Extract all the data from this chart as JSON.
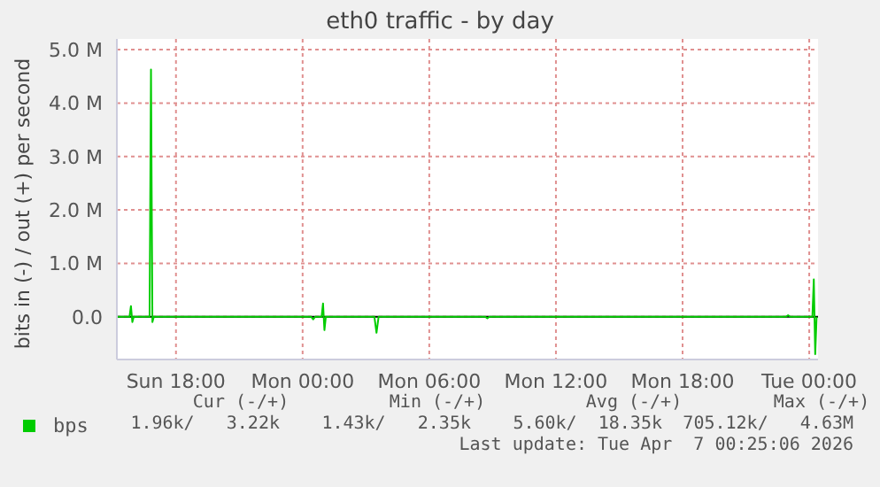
{
  "chart_data": {
    "type": "line",
    "title": "eth0 traffic - by day",
    "ylabel": "bits in (-) / out (+) per second",
    "xlim": [
      "2026-04-05T15:12",
      "2026-04-07T00:25"
    ],
    "xticks": [
      {
        "value": "2026-04-05T18:00",
        "label": "Sun 18:00"
      },
      {
        "value": "2026-04-06T00:00",
        "label": "Mon 00:00"
      },
      {
        "value": "2026-04-06T06:00",
        "label": "Mon 06:00"
      },
      {
        "value": "2026-04-06T12:00",
        "label": "Mon 12:00"
      },
      {
        "value": "2026-04-06T18:00",
        "label": "Mon 18:00"
      },
      {
        "value": "2026-04-07T00:00",
        "label": "Tue 00:00"
      }
    ],
    "ylim": [
      -0.8,
      5.2
    ],
    "yticks": [
      {
        "value": 0,
        "label": "0.0"
      },
      {
        "value": 1,
        "label": "1.0 M"
      },
      {
        "value": 2,
        "label": "2.0 M"
      },
      {
        "value": 3,
        "label": "3.0 M"
      },
      {
        "value": 4,
        "label": "4.0 M"
      },
      {
        "value": 5,
        "label": "5.0 M"
      }
    ],
    "grid": true,
    "legend": "bottom",
    "marker": "none",
    "line_style": "solid",
    "series": [
      {
        "name": "bps",
        "color": "#00cc00",
        "x": [
          "2026-04-05T15:12",
          "2026-04-05T15:48",
          "2026-04-05T15:52",
          "2026-04-05T15:56",
          "2026-04-05T16:00",
          "2026-04-05T16:45",
          "2026-04-05T16:49",
          "2026-04-05T16:53",
          "2026-04-05T16:57",
          "2026-04-06T00:24",
          "2026-04-06T00:30",
          "2026-04-06T00:36",
          "2026-04-06T00:54",
          "2026-04-06T00:58",
          "2026-04-06T01:02",
          "2026-04-06T01:06",
          "2026-04-06T03:24",
          "2026-04-06T03:30",
          "2026-04-06T03:36",
          "2026-04-06T08:39",
          "2026-04-06T08:45",
          "2026-04-06T08:51",
          "2026-04-06T22:54",
          "2026-04-06T23:00",
          "2026-04-06T23:06",
          "2026-04-07T00:09",
          "2026-04-07T00:13",
          "2026-04-07T00:17",
          "2026-04-07T00:21"
        ],
        "values": [
          0,
          0,
          0.2,
          -0.1,
          0,
          0,
          4.63,
          -0.1,
          0,
          0,
          -0.05,
          0,
          0,
          0.25,
          -0.25,
          0,
          0,
          -0.3,
          0,
          0,
          -0.03,
          0,
          0,
          0.03,
          0,
          0,
          0.7,
          -0.7,
          0
        ]
      }
    ],
    "ref_lines": [
      {
        "axis": "y",
        "value": 0,
        "color": "#000000"
      }
    ],
    "annotations": [
      "Cur (-/+)",
      "Min (-/+)",
      "Avg (-/+)",
      "Max (-/+)",
      "1.96k/   3.22k",
      "1.43k/   2.35k",
      "5.60k/  18.35k",
      "705.12k/   4.63M",
      "Last update: Tue Apr  7 00:25:06 2026"
    ]
  }
}
